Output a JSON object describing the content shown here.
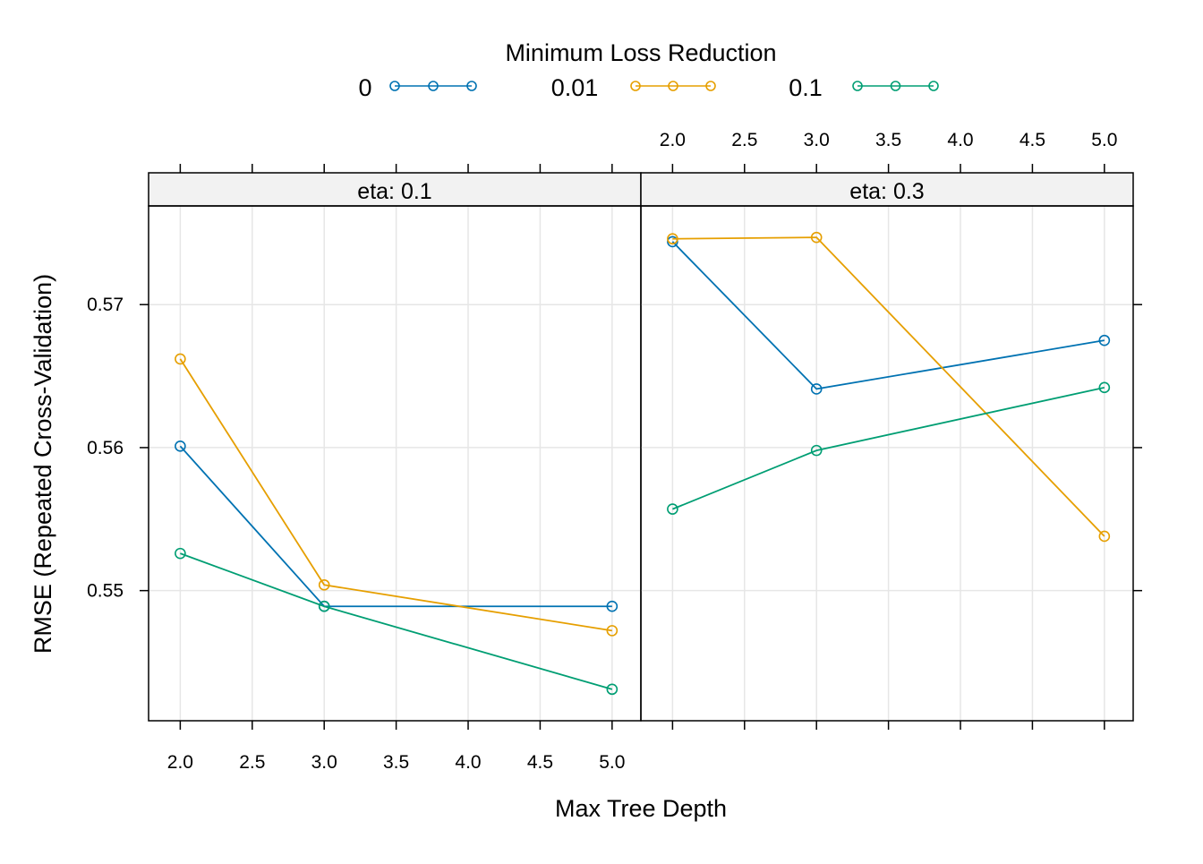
{
  "legend": {
    "title": "Minimum Loss Reduction",
    "placement": "top"
  },
  "chart_data": {
    "type": "line",
    "xlabel": "Max Tree Depth",
    "ylabel": "RMSE (Repeated Cross-Validation)",
    "xlim": [
      1.78,
      5.2
    ],
    "ylim": [
      0.5409,
      0.5769
    ],
    "x_ticks": [
      "2.0",
      "2.5",
      "3.0",
      "3.5",
      "4.0",
      "4.5",
      "5.0"
    ],
    "y_ticks": [
      "0.55",
      "0.56",
      "0.57"
    ],
    "grid": true,
    "x": [
      2,
      3,
      5
    ],
    "panels": [
      {
        "strip": "eta: 0.1",
        "series": [
          {
            "name": "0",
            "color": "#0072B2",
            "values": [
              0.5601,
              0.5489,
              0.5489
            ]
          },
          {
            "name": "0.01",
            "color": "#E69F00",
            "values": [
              0.5662,
              0.5504,
              0.5472
            ]
          },
          {
            "name": "0.1",
            "color": "#009E73",
            "values": [
              0.5526,
              0.5489,
              0.5431
            ]
          }
        ]
      },
      {
        "strip": "eta: 0.3",
        "series": [
          {
            "name": "0",
            "color": "#0072B2",
            "values": [
              0.5744,
              0.5641,
              0.5675
            ]
          },
          {
            "name": "0.01",
            "color": "#E69F00",
            "values": [
              0.5746,
              0.5747,
              0.5538
            ]
          },
          {
            "name": "0.1",
            "color": "#009E73",
            "values": [
              0.5557,
              0.5598,
              0.5642
            ]
          }
        ]
      }
    ]
  }
}
